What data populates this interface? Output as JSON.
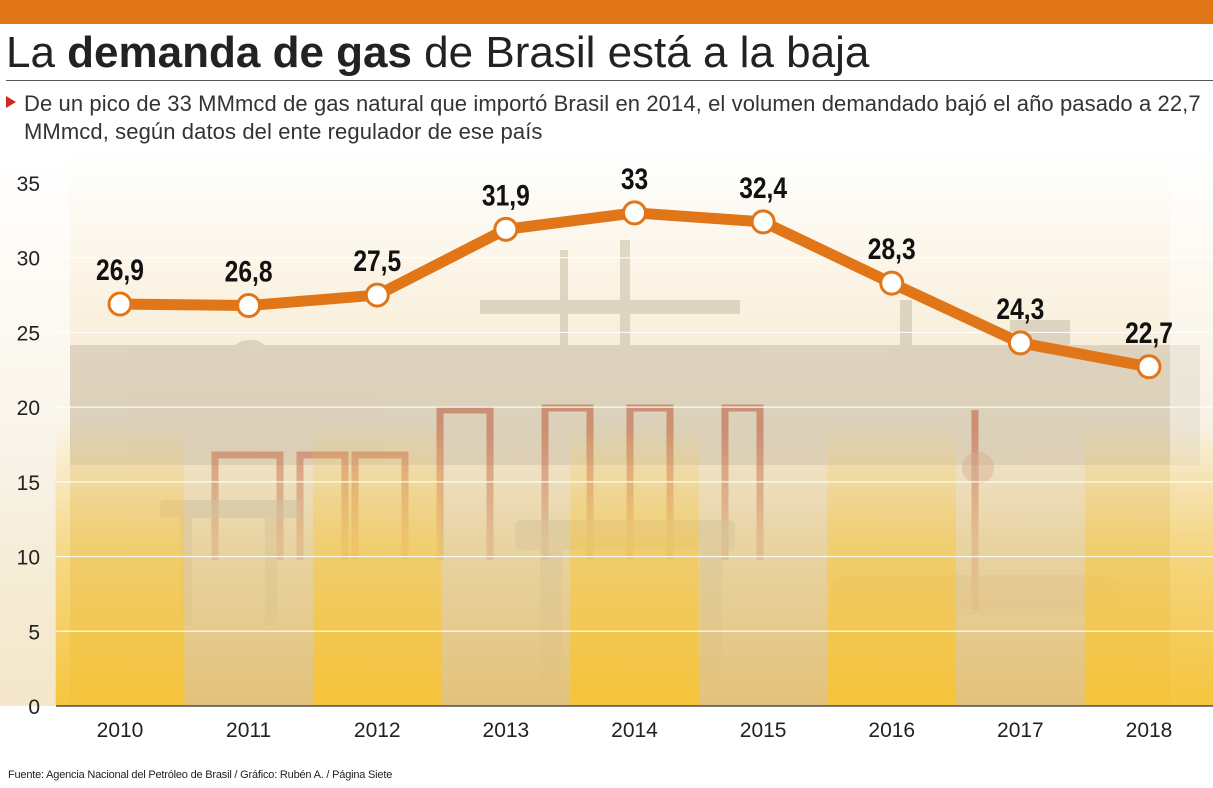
{
  "title": {
    "prefix": "La ",
    "bold": "demanda de gas",
    "suffix": " de Brasil está a la baja"
  },
  "subtitle": "De un pico de 33 MMmcd de gas natural que importó Brasil en 2014, el volumen demandado bajó el año pasado a 22,7 MMmcd, según datos del ente regulador de ese país",
  "source": "Fuente: Agencia Nacional del Petróleo de Brasil / Gráfico: Rubén A. / Página Siete",
  "colors": {
    "accent": "#e07618",
    "band_yellow": "#f7c948",
    "background_photo": "#e9dcc3"
  },
  "chart_data": {
    "type": "line",
    "categories": [
      "2010",
      "2011",
      "2012",
      "2013",
      "2014",
      "2015",
      "2016",
      "2017",
      "2018"
    ],
    "values": [
      26.9,
      26.8,
      27.5,
      31.9,
      33,
      32.4,
      28.3,
      24.3,
      22.7
    ],
    "data_labels": [
      "26,9",
      "26,8",
      "27,5",
      "31,9",
      "33",
      "32,4",
      "28,3",
      "24,3",
      "22,7"
    ],
    "y_ticks": [
      0,
      5,
      10,
      15,
      20,
      25,
      30,
      35
    ],
    "ylim": [
      0,
      35
    ],
    "grid": true,
    "title": "",
    "xlabel": "",
    "ylabel": ""
  }
}
